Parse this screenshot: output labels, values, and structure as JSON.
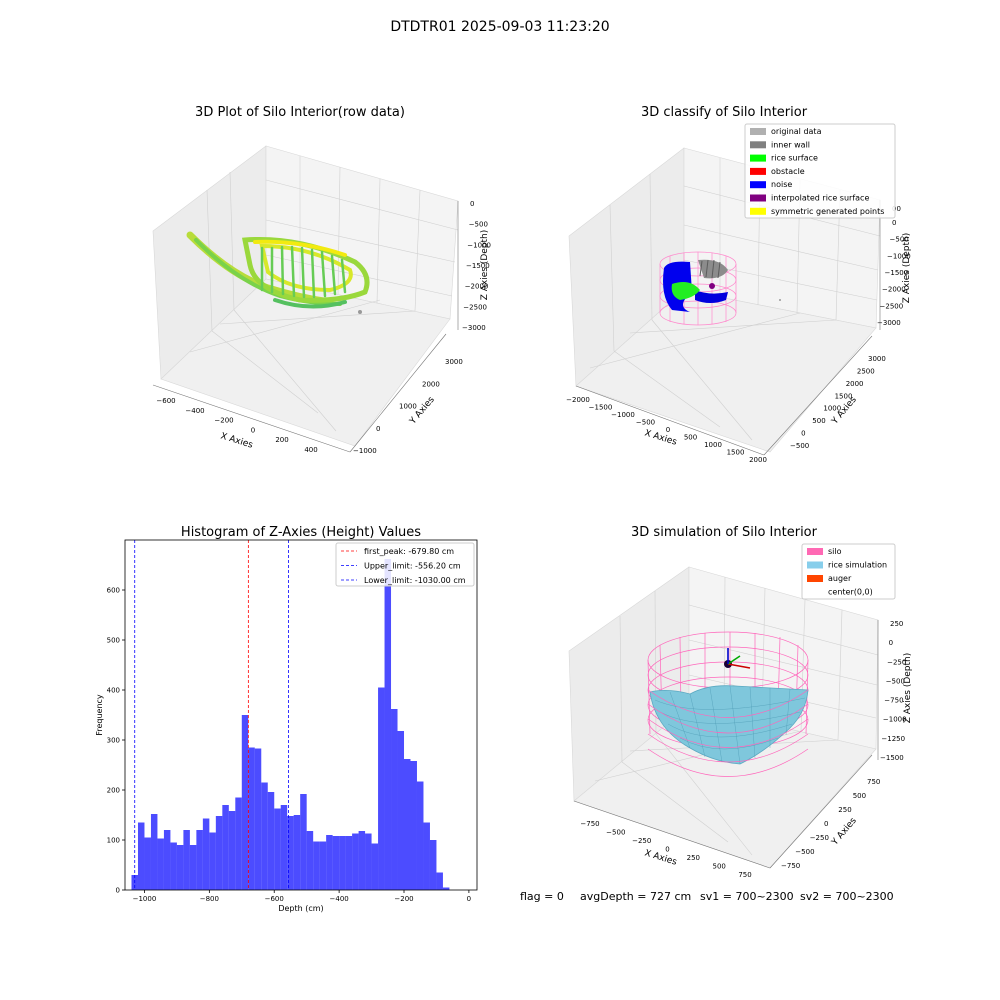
{
  "figure": {
    "suptitle": "DTDTR01 2025-09-03 11:23:20",
    "footer": {
      "flag": "flag = 0",
      "avg_depth": "avgDepth = 727 cm",
      "sv1": "sv1 = 700~2300",
      "sv2": "sv2 = 700~2300"
    }
  },
  "panels": {
    "raw": {
      "title": "3D Plot of Silo Interior(row data)",
      "xlabel": "X Axies",
      "ylabel": "Y Axies",
      "zlabel": "Z Axies (Depth)",
      "xticks": [
        "−600",
        "−400",
        "−200",
        "0",
        "200",
        "400"
      ],
      "yticks": [
        "−1000",
        "0",
        "1000",
        "2000",
        "3000"
      ],
      "zticks": [
        "0",
        "−500",
        "−1000",
        "−1500",
        "−2000",
        "−2500",
        "−3000"
      ]
    },
    "classify": {
      "title": "3D classify of Silo Interior",
      "xlabel": "X Axies",
      "ylabel": "Y Axies",
      "zlabel": "Z Axies (Depth)",
      "xticks": [
        "−2000",
        "−1500",
        "−1000",
        "−500",
        "0",
        "500",
        "1000",
        "1500",
        "2000"
      ],
      "yticks": [
        "−500",
        "0",
        "500",
        "1000",
        "1500",
        "2000",
        "2500",
        "3000"
      ],
      "zticks": [
        "0",
        "−500",
        "−1000",
        "−1500",
        "−2000",
        "−2500",
        "−3000"
      ],
      "ztick_partial": "00",
      "legend": [
        {
          "label": "original data",
          "color": "#b0b0b0"
        },
        {
          "label": "inner wall",
          "color": "#808080"
        },
        {
          "label": "rice surface",
          "color": "#00ff00"
        },
        {
          "label": "obstacle",
          "color": "#ff0000"
        },
        {
          "label": "noise",
          "color": "#0000ff"
        },
        {
          "label": "interpolated rice surface",
          "color": "#800080"
        },
        {
          "label": "symmetric generated points",
          "color": "#ffff00"
        }
      ]
    },
    "simulation": {
      "title": "3D simulation of Silo Interior",
      "xlabel": "X Axies",
      "ylabel": "Y Axies",
      "zlabel": "Z Axies (Depth)",
      "xticks": [
        "−750",
        "−500",
        "−250",
        "0",
        "250",
        "500",
        "750"
      ],
      "yticks": [
        "−750",
        "−500",
        "−250",
        "0",
        "250",
        "500",
        "750"
      ],
      "zticks": [
        "250",
        "0",
        "−250",
        "−500",
        "−750",
        "−1000",
        "−1250",
        "−1500"
      ],
      "legend": [
        {
          "label": "silo",
          "color": "#ff69b4"
        },
        {
          "label": "rice simulation",
          "color": "#87ceeb"
        },
        {
          "label": "auger",
          "color": "#ff4500"
        },
        {
          "label": "center(0,0)",
          "color": "#ffffff"
        }
      ]
    }
  },
  "chart_data": {
    "type": "bar",
    "title": "Histogram of Z-Axies (Height) Values",
    "xlabel": "Depth (cm)",
    "ylabel": "Frequency",
    "xlim": [
      -1060,
      25
    ],
    "ylim": [
      0,
      700
    ],
    "xticks": [
      -1000,
      -800,
      -600,
      -400,
      -200,
      0
    ],
    "yticks": [
      0,
      100,
      200,
      300,
      400,
      500,
      600
    ],
    "bin_start": -1040,
    "bin_width": 20,
    "color": "#0000ff",
    "values": [
      30,
      135,
      105,
      152,
      103,
      120,
      95,
      90,
      120,
      90,
      120,
      143,
      115,
      148,
      170,
      158,
      185,
      350,
      285,
      283,
      215,
      196,
      163,
      170,
      148,
      150,
      192,
      118,
      97,
      97,
      110,
      108,
      108,
      108,
      113,
      118,
      113,
      93,
      405,
      662,
      362,
      318,
      262,
      258,
      217,
      135,
      100,
      35,
      5
    ],
    "lines": [
      {
        "x": -679.8,
        "color": "#ff0000",
        "label": "first_peak: -679.80 cm"
      },
      {
        "x": -556.2,
        "color": "#0000ff",
        "label": "Upper_limit: -556.20 cm"
      },
      {
        "x": -1030.0,
        "color": "#0000ff",
        "label": "Lower_limit: -1030.00 cm"
      }
    ],
    "legend_position": "upper right"
  }
}
